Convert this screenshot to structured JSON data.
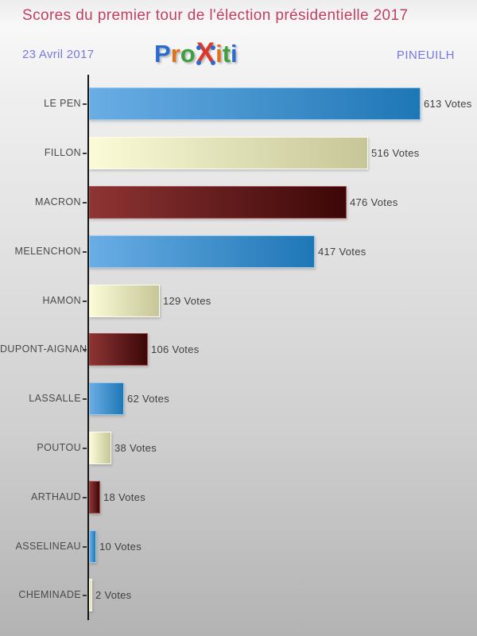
{
  "header": {
    "title": "Scores du premier tour de l'élection présidentielle 2017",
    "title_color": "#c13f63",
    "date": "23 Avril 2017",
    "place": "PINEUILH",
    "meta_color": "#7779da"
  },
  "logo": {
    "name": "Proxiti",
    "letters": [
      {
        "ch": "P",
        "color": "#2a6bd2"
      },
      {
        "ch": "r",
        "color": "#e2711d"
      },
      {
        "ch": "o",
        "color": "#3f9e3f"
      },
      {
        "ch": "X",
        "color": "#d93a2b",
        "dot_color": "#2a6bd2",
        "is_x": true
      },
      {
        "ch": "i",
        "color": "#e2711d"
      },
      {
        "ch": "t",
        "color": "#3f9e3f"
      },
      {
        "ch": "i",
        "color": "#2a6bd2"
      }
    ]
  },
  "chart_data": {
    "type": "bar",
    "orientation": "horizontal",
    "title": "Scores du premier tour de l'élection présidentielle 2017",
    "categories": [
      "LE PEN",
      "FILLON",
      "MACRON",
      "MELENCHON",
      "HAMON",
      "DUPONT-AIGNAN",
      "LASSALLE",
      "POUTOU",
      "ARTHAUD",
      "ASSELINEAU",
      "CHEMINADE"
    ],
    "values": [
      613,
      516,
      476,
      417,
      129,
      106,
      62,
      38,
      18,
      10,
      2
    ],
    "value_suffix": "Votes",
    "value_labels": [
      "613 Votes",
      "516 Votes",
      "476 Votes",
      "417 Votes",
      "129 Votes",
      "106 Votes",
      "62 Votes",
      "38 Votes",
      "18 Votes",
      "10 Votes",
      "2 Votes"
    ],
    "xlim": [
      0,
      650
    ],
    "grid": false,
    "legend": false,
    "axis_color": "#161616",
    "bar_colors_cycle": [
      {
        "name": "blue",
        "from": "#6aade5",
        "to": "#1e77b5",
        "border": "#9bcaee"
      },
      {
        "name": "cream",
        "from": "#fbfbd7",
        "to": "#c6c698",
        "border": "#fffef0"
      },
      {
        "name": "darkred",
        "from": "#8e3434",
        "to": "#3c0707",
        "border": "#a65353"
      }
    ]
  }
}
